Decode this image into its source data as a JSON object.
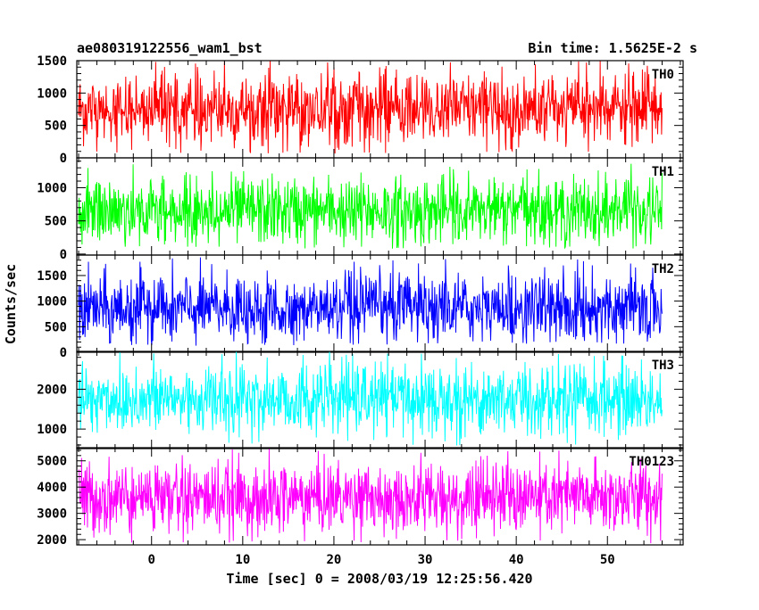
{
  "header": {
    "title": "ae080319122556_wam1_bst",
    "bin_time": "Bin time: 1.5625E-2 s"
  },
  "chart_data": {
    "type": "line",
    "title": "ae080319122556_wam1_bst",
    "subtitle": "Bin time: 1.5625E-2 s",
    "xlabel": "Time [sec] 0 = 2008/03/19 12:25:56.420",
    "ylabel": "Counts/sec",
    "xlim": [
      -8.2,
      58.3
    ],
    "x_ticks": [
      0,
      10,
      20,
      30,
      40,
      50
    ],
    "x_data_range": [
      -8.0,
      56.0
    ],
    "bin_time": 0.015625,
    "grid": false,
    "panels": [
      {
        "label": "TH0",
        "color": "#ff0000",
        "ylim": [
          0,
          1500
        ],
        "yticks": [
          0,
          500,
          1000,
          1500
        ],
        "mean": 750,
        "min": 60,
        "max": 1500
      },
      {
        "label": "TH1",
        "color": "#00ff00",
        "ylim": [
          -15,
          1450
        ],
        "yticks": [
          0,
          500,
          1000
        ],
        "mean": 650,
        "min": 80,
        "max": 1400
      },
      {
        "label": "TH2",
        "color": "#0000ff",
        "ylim": [
          0,
          1900
        ],
        "yticks": [
          0,
          500,
          1000,
          1500
        ],
        "mean": 850,
        "min": 120,
        "max": 1880
      },
      {
        "label": "TH3",
        "color": "#00ffff",
        "ylim": [
          510,
          2950
        ],
        "yticks": [
          1000,
          2000
        ],
        "mean": 1750,
        "min": 580,
        "max": 2950
      },
      {
        "label": "TH0123",
        "color": "#ff00ff",
        "ylim": [
          1800,
          5500
        ],
        "yticks": [
          2000,
          3000,
          4000,
          5000
        ],
        "mean": 3600,
        "min": 1850,
        "max": 5450
      }
    ]
  }
}
